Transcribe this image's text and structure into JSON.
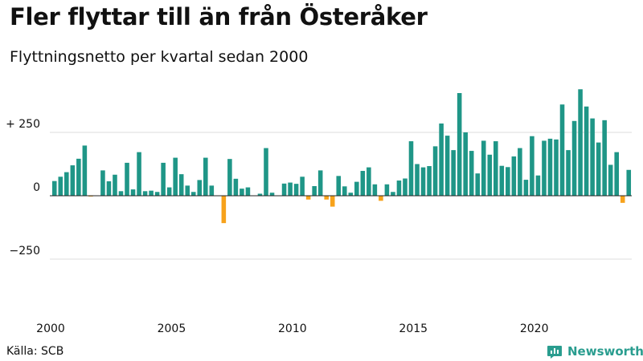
{
  "header": {
    "title": "Fler flyttar till än från Österåker",
    "subtitle": "Flyttningsnetto per kvartal sedan 2000"
  },
  "footer": {
    "source": "Källa: SCB",
    "brand": "Newsworthy"
  },
  "colors": {
    "positive": "#1f9687",
    "negative": "#f7a21b",
    "brand": "#2a9d8f",
    "gridline": "#dddddd",
    "baseline": "#222222"
  },
  "chart_data": {
    "type": "bar",
    "start_year": 2000,
    "periods_per_year": 4,
    "xticks": [
      2000,
      2005,
      2010,
      2015,
      2020
    ],
    "xtick_labels": [
      "2000",
      "2005",
      "2010",
      "2015",
      "2020"
    ],
    "yticks": [
      250,
      0,
      -250
    ],
    "ytick_labels": [
      "+ 250",
      "0",
      "−250"
    ],
    "ylim": [
      -420,
      430
    ],
    "grid": true,
    "values": [
      58,
      75,
      93,
      120,
      146,
      198,
      -3,
      0,
      100,
      57,
      83,
      18,
      130,
      25,
      172,
      18,
      20,
      15,
      130,
      33,
      150,
      85,
      40,
      15,
      62,
      150,
      40,
      0,
      -108,
      145,
      67,
      28,
      33,
      0,
      8,
      188,
      12,
      0,
      48,
      52,
      47,
      75,
      -15,
      38,
      100,
      -15,
      -43,
      78,
      37,
      12,
      55,
      98,
      112,
      45,
      -20,
      45,
      15,
      60,
      68,
      215,
      125,
      112,
      117,
      195,
      285,
      237,
      180,
      405,
      250,
      177,
      88,
      217,
      162,
      215,
      118,
      113,
      155,
      188,
      63,
      235,
      80,
      217,
      225,
      222,
      360,
      180,
      295,
      420,
      352,
      305,
      210,
      298,
      122,
      172,
      -28,
      102
    ]
  }
}
